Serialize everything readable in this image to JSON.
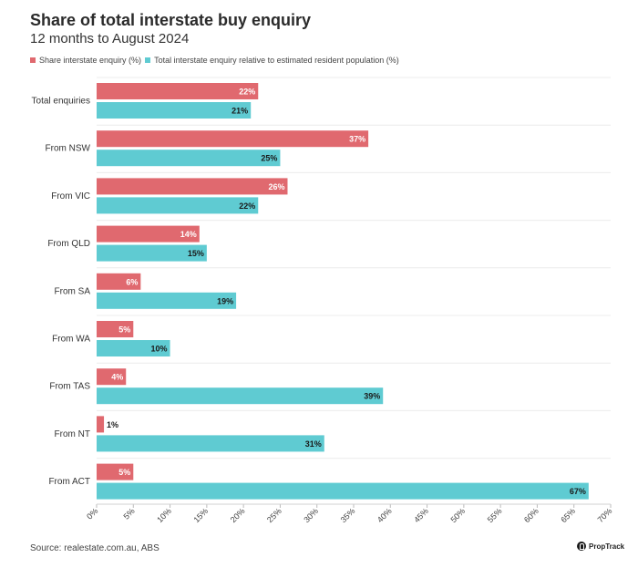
{
  "header": {
    "title": "Share of total interstate buy enquiry",
    "subtitle": "12 months to August 2024"
  },
  "footer": {
    "source": "Source: realestate.com.au, ABS",
    "logo_text": "PropTrack"
  },
  "colors": {
    "series1": "#e0696f",
    "series2": "#5fcbd2"
  },
  "chart_data": {
    "type": "bar",
    "orientation": "horizontal",
    "title": "Share of total interstate buy enquiry",
    "subtitle": "12 months to August 2024",
    "categories": [
      "Total enquiries",
      "From NSW",
      "From VIC",
      "From QLD",
      "From SA",
      "From WA",
      "From TAS",
      "From NT",
      "From ACT"
    ],
    "series": [
      {
        "name": "Share interstate enquiry (%)",
        "values": [
          22,
          37,
          26,
          14,
          6,
          5,
          4,
          1,
          5
        ]
      },
      {
        "name": "Total interstate enquiry relative to estimated resident population (%)",
        "values": [
          21,
          25,
          22,
          15,
          19,
          10,
          39,
          31,
          67
        ]
      }
    ],
    "xlim": [
      0,
      70
    ],
    "xticks": [
      0,
      5,
      10,
      15,
      20,
      25,
      30,
      35,
      40,
      45,
      50,
      55,
      60,
      65,
      70
    ],
    "tick_suffix": "%",
    "grid": true,
    "legend": "top-left"
  }
}
